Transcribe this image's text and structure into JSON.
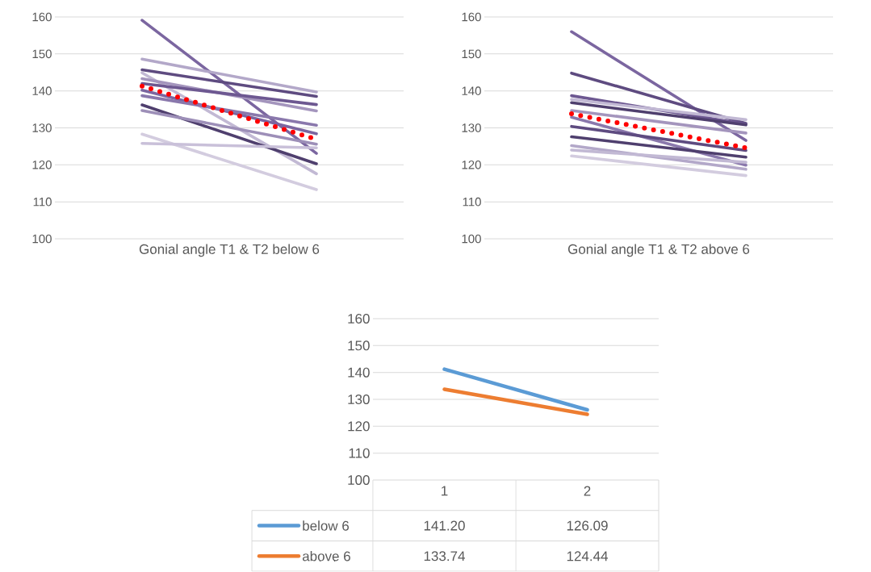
{
  "chart_data": [
    {
      "type": "line",
      "xlabel": "Gonial angle T1 & T2 below 6",
      "categories": [
        null,
        null
      ],
      "ylim": [
        100,
        160
      ],
      "yticks": [
        100,
        110,
        120,
        130,
        140,
        150,
        160
      ],
      "grid": "y",
      "tick_labels": "y",
      "series": [
        {
          "color": "#7b66a0",
          "values": [
            159.1,
            123.1
          ]
        },
        {
          "color": "#b3a8c9",
          "values": [
            148.6,
            139.7
          ]
        },
        {
          "color": "#5e4b80",
          "values": [
            145.7,
            138.5
          ]
        },
        {
          "color": "#c2b9d4",
          "values": [
            144.9,
            117.6
          ]
        },
        {
          "color": "#a495bd",
          "values": [
            143.3,
            134.6
          ]
        },
        {
          "color": "#6d5891",
          "values": [
            142.0,
            136.3
          ]
        },
        {
          "color": "#7b66a0",
          "values": [
            140.2,
            128.4
          ]
        },
        {
          "color": "#8a78ac",
          "values": [
            138.7,
            130.7
          ]
        },
        {
          "color": "#4f3f6e",
          "values": [
            136.2,
            120.3
          ]
        },
        {
          "color": "#9d8fb8",
          "values": [
            134.7,
            125.6
          ]
        },
        {
          "color": "#d3ccdf",
          "values": [
            128.3,
            113.3
          ]
        },
        {
          "color": "#c9c0d9",
          "values": [
            125.8,
            124.6
          ]
        },
        {
          "color": "#ff0000",
          "values": [
            141.3,
            126.9
          ],
          "line_style": "dotted"
        }
      ]
    },
    {
      "type": "line",
      "xlabel": "Gonial angle T1 & T2 above 6",
      "categories": [
        null,
        null
      ],
      "ylim": [
        100,
        160
      ],
      "yticks": [
        100,
        110,
        120,
        130,
        140,
        150,
        160
      ],
      "grid": "y",
      "tick_labels": "y",
      "series": [
        {
          "color": "#7b66a0",
          "values": [
            156.0,
            126.6
          ]
        },
        {
          "color": "#5e4b80",
          "values": [
            144.8,
            131.2
          ]
        },
        {
          "color": "#6d5891",
          "values": [
            138.7,
            131.0
          ]
        },
        {
          "color": "#c2b9d4",
          "values": [
            137.7,
            132.2
          ]
        },
        {
          "color": "#4f3f6e",
          "values": [
            136.8,
            130.8
          ]
        },
        {
          "color": "#a495bd",
          "values": [
            134.7,
            128.6
          ]
        },
        {
          "color": "#8a78ac",
          "values": [
            132.9,
            119.9
          ]
        },
        {
          "color": "#5e4b80",
          "values": [
            130.4,
            123.9
          ]
        },
        {
          "color": "#4f3f6e",
          "values": [
            127.6,
            122.1
          ]
        },
        {
          "color": "#b3a8c9",
          "values": [
            125.2,
            118.8
          ]
        },
        {
          "color": "#c2b9d4",
          "values": [
            124.0,
            120.7
          ]
        },
        {
          "color": "#d3ccdf",
          "values": [
            122.4,
            117.1
          ]
        },
        {
          "color": "#ff0000",
          "values": [
            133.8,
            124.6
          ],
          "line_style": "dotted"
        }
      ]
    },
    {
      "type": "line",
      "categories": [
        "1",
        "2"
      ],
      "ylim": [
        100,
        160
      ],
      "yticks": [
        100,
        110,
        120,
        130,
        140,
        150,
        160
      ],
      "grid": "y",
      "legend": "bottom",
      "series": [
        {
          "name": "below 6",
          "color": "#5b9bd5",
          "values": [
            141.2,
            126.09
          ],
          "value_labels": [
            "141.20",
            "126.09"
          ]
        },
        {
          "name": "above 6",
          "color": "#ed7d31",
          "values": [
            133.74,
            124.44
          ],
          "value_labels": [
            "133.74",
            "124.44"
          ]
        }
      ]
    }
  ]
}
